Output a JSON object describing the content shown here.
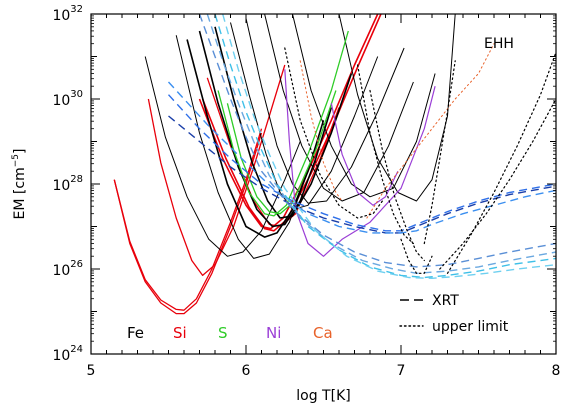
{
  "chart_data": {
    "type": "line",
    "xlabel": "log T[K]",
    "ylabel": "EM [cm⁻⁵]",
    "ylabel_base": "EM [cm",
    "ylabel_exp": "−5",
    "ylabel_close": "]",
    "xlim": [
      5,
      8
    ],
    "ylim_log10": [
      24,
      32
    ],
    "y_scale": "log",
    "grid": false,
    "x_ticks": [
      {
        "value": 5,
        "label": "5"
      },
      {
        "value": 6,
        "label": "6"
      },
      {
        "value": 7,
        "label": "7"
      },
      {
        "value": 8,
        "label": "8"
      }
    ],
    "y_ticks": [
      {
        "value": 24,
        "base": "10",
        "exp": "24"
      },
      {
        "value": 26,
        "base": "10",
        "exp": "26"
      },
      {
        "value": 28,
        "base": "10",
        "exp": "28"
      },
      {
        "value": 30,
        "base": "10",
        "exp": "30"
      },
      {
        "value": 32,
        "base": "10",
        "exp": "32"
      }
    ],
    "annotation": "EHH",
    "element_labels": [
      {
        "text": "Fe",
        "color": "#000000"
      },
      {
        "text": "Si",
        "color": "#e8000b"
      },
      {
        "text": "S",
        "color": "#2ecc27"
      },
      {
        "text": "Ni",
        "color": "#9b3fd6"
      },
      {
        "text": "Ca",
        "color": "#e8622a"
      }
    ],
    "legend": [
      {
        "label": "XRT",
        "style": "dashed"
      },
      {
        "label": "upper limit",
        "style": "dotted"
      }
    ],
    "curves": [
      {
        "group": "Si",
        "color": "#e8000b",
        "style": "solid",
        "width": 1.3,
        "x": [
          5.15,
          5.25,
          5.35,
          5.45,
          5.55,
          5.6,
          5.68,
          5.78,
          5.9,
          6.0,
          6.1
        ],
        "y": [
          28.1,
          26.6,
          25.7,
          25.2,
          24.95,
          24.95,
          25.2,
          25.9,
          27.0,
          28.0,
          29.2
        ]
      },
      {
        "group": "Si",
        "color": "#e8000b",
        "style": "solid",
        "width": 1.3,
        "x": [
          5.15,
          5.25,
          5.35,
          5.45,
          5.55,
          5.6,
          5.68,
          5.78,
          5.9,
          6.0,
          6.1
        ],
        "y": [
          28.1,
          26.65,
          25.75,
          25.27,
          25.05,
          25.03,
          25.3,
          26.0,
          27.1,
          28.1,
          29.3
        ]
      },
      {
        "group": "Si",
        "color": "#e8000b",
        "style": "solid",
        "width": 1.3,
        "x": [
          5.37,
          5.45,
          5.55,
          5.65,
          5.72,
          5.8,
          5.92,
          6.05,
          6.15,
          6.25
        ],
        "y": [
          30.0,
          28.5,
          27.2,
          26.2,
          25.85,
          26.1,
          27.0,
          28.4,
          29.6,
          30.8
        ]
      },
      {
        "group": "Si",
        "color": "#e8000b",
        "style": "solid",
        "width": 1.6,
        "x": [
          5.7,
          5.85,
          6.0,
          6.1,
          6.16,
          6.24,
          6.4,
          6.55,
          6.7,
          6.85
        ],
        "y": [
          30.0,
          28.6,
          27.5,
          27.0,
          26.95,
          27.2,
          28.3,
          29.5,
          30.8,
          32.0
        ]
      },
      {
        "group": "Si",
        "color": "#e8000b",
        "style": "solid",
        "width": 1.6,
        "x": [
          5.72,
          5.87,
          6.02,
          6.12,
          6.18,
          6.26,
          6.42,
          6.57,
          6.72,
          6.87
        ],
        "y": [
          30.0,
          28.6,
          27.45,
          26.95,
          26.9,
          27.15,
          28.25,
          29.45,
          30.75,
          32.0
        ]
      },
      {
        "group": "Si",
        "color": "#e8000b",
        "style": "solid",
        "width": 1.3,
        "x": [
          5.75,
          5.9,
          6.05,
          6.15,
          6.22,
          6.32,
          6.48,
          6.6
        ],
        "y": [
          30.5,
          28.9,
          27.6,
          27.05,
          27.0,
          27.3,
          28.6,
          29.8
        ]
      },
      {
        "group": "Fe",
        "color": "#000000",
        "style": "solid",
        "width": 1.0,
        "x": [
          5.35,
          5.48,
          5.62,
          5.76,
          5.88,
          5.98,
          6.1,
          6.25,
          6.35
        ],
        "y": [
          31.0,
          29.1,
          27.7,
          26.7,
          26.3,
          26.4,
          26.9,
          28.1,
          29.0
        ]
      },
      {
        "group": "Fe",
        "color": "#000000",
        "style": "solid",
        "width": 1.0,
        "x": [
          5.55,
          5.7,
          5.82,
          5.95,
          6.05,
          6.15,
          6.28,
          6.4
        ],
        "y": [
          31.5,
          29.2,
          27.8,
          26.7,
          26.25,
          26.35,
          27.1,
          28.3
        ]
      },
      {
        "group": "Fe",
        "color": "#000000",
        "style": "solid",
        "width": 1.6,
        "x": [
          5.62,
          5.75,
          5.88,
          6.0,
          6.12,
          6.2,
          6.3,
          6.4,
          6.5
        ],
        "y": [
          31.4,
          29.6,
          28.0,
          27.0,
          26.75,
          26.85,
          27.4,
          28.3,
          29.5
        ]
      },
      {
        "group": "Fe",
        "color": "#000000",
        "style": "solid",
        "width": 1.6,
        "x": [
          5.7,
          5.82,
          5.95,
          6.07,
          6.17,
          6.25,
          6.35,
          6.45,
          6.55
        ],
        "y": [
          31.6,
          29.9,
          28.4,
          27.4,
          27.0,
          27.05,
          27.6,
          28.6,
          29.8
        ]
      },
      {
        "group": "Fe",
        "color": "#000000",
        "style": "solid",
        "width": 1.6,
        "x": [
          5.8,
          5.92,
          6.04,
          6.14,
          6.22,
          6.3,
          6.42,
          6.55,
          6.68
        ],
        "y": [
          31.7,
          30.0,
          28.5,
          27.6,
          27.2,
          27.25,
          28.0,
          29.2,
          30.6
        ]
      },
      {
        "group": "Fe",
        "color": "#000000",
        "style": "solid",
        "width": 1.0,
        "x": [
          5.9,
          6.02,
          6.13,
          6.22,
          6.3,
          6.4,
          6.55,
          6.7,
          6.85
        ],
        "y": [
          31.8,
          30.1,
          28.7,
          27.8,
          27.4,
          27.5,
          28.3,
          29.6,
          31.0
        ]
      },
      {
        "group": "Fe",
        "color": "#000000",
        "style": "solid",
        "width": 1.0,
        "x": [
          6.0,
          6.1,
          6.2,
          6.3,
          6.4,
          6.52,
          6.68,
          6.85,
          7.02
        ],
        "y": [
          31.9,
          30.3,
          28.9,
          28.0,
          27.55,
          27.6,
          28.4,
          29.7,
          31.2
        ]
      },
      {
        "group": "Fe",
        "color": "#000000",
        "style": "solid",
        "width": 1.0,
        "x": [
          6.12,
          6.24,
          6.36,
          6.5,
          6.62,
          6.76,
          6.92,
          7.08
        ],
        "y": [
          32.0,
          30.2,
          28.9,
          27.9,
          27.6,
          27.8,
          28.9,
          30.4
        ]
      },
      {
        "group": "Fe",
        "color": "#000000",
        "style": "solid",
        "width": 1.0,
        "x": [
          6.3,
          6.42,
          6.55,
          6.68,
          6.8,
          6.95,
          7.1,
          7.22
        ],
        "y": [
          32.0,
          30.2,
          28.9,
          28.0,
          27.7,
          27.9,
          29.0,
          30.6
        ]
      },
      {
        "group": "Fe",
        "color": "#000000",
        "style": "solid",
        "width": 1.0,
        "x": [
          6.6,
          6.72,
          6.85,
          6.98,
          7.1,
          7.2,
          7.3,
          7.35
        ],
        "y": [
          32.0,
          30.1,
          28.6,
          27.8,
          27.6,
          28.1,
          29.6,
          32.0
        ]
      },
      {
        "group": "S",
        "color": "#2ecc27",
        "style": "solid",
        "width": 1.3,
        "x": [
          5.82,
          5.92,
          6.02,
          6.12,
          6.18,
          6.26,
          6.4,
          6.55,
          6.66
        ],
        "y": [
          30.2,
          28.8,
          27.8,
          27.3,
          27.25,
          27.5,
          28.7,
          30.2,
          31.6
        ]
      },
      {
        "group": "S",
        "color": "#2ecc27",
        "style": "solid",
        "width": 1.3,
        "x": [
          5.88,
          5.97,
          6.07,
          6.15,
          6.22,
          6.3,
          6.45,
          6.58
        ],
        "y": [
          29.9,
          28.6,
          27.7,
          27.35,
          27.3,
          27.55,
          28.8,
          30.2
        ]
      },
      {
        "group": "Ni",
        "color": "#9b3fd6",
        "style": "solid",
        "width": 1.2,
        "x": [
          6.25,
          6.28,
          6.32,
          6.4,
          6.5,
          6.62,
          6.8,
          7.0,
          7.15,
          7.22
        ],
        "y": [
          30.7,
          29.0,
          27.4,
          26.6,
          26.3,
          26.7,
          27.1,
          27.9,
          29.3,
          30.3
        ]
      },
      {
        "group": "Ni",
        "color": "#9b3fd6",
        "style": "solid",
        "width": 1.2,
        "x": [
          6.55,
          6.62,
          6.72,
          6.82,
          6.9,
          6.98
        ],
        "y": [
          29.9,
          28.7,
          27.8,
          27.5,
          27.7,
          28.3
        ]
      },
      {
        "group": "Ca",
        "color": "#e8622a",
        "style": "dotted",
        "width": 1.0,
        "x": [
          6.35,
          6.42,
          6.5,
          6.58,
          6.62
        ],
        "y": [
          30.9,
          29.6,
          28.5,
          27.8,
          27.6
        ]
      },
      {
        "group": "Ca",
        "color": "#e8622a",
        "style": "dotted",
        "width": 1.0,
        "x": [
          6.78,
          6.9,
          7.05,
          7.2,
          7.35,
          7.5,
          7.6
        ],
        "y": [
          27.2,
          27.9,
          28.6,
          29.3,
          30.0,
          30.6,
          31.3
        ]
      },
      {
        "group": "XRT",
        "color": "#1a3ea8",
        "style": "dashed",
        "width": 1.4,
        "x": [
          5.5,
          5.7,
          5.9,
          6.1,
          6.3,
          6.5,
          6.7,
          6.9,
          7.0,
          7.1,
          7.3,
          7.5,
          7.7,
          8.0
        ],
        "y": [
          29.6,
          29.0,
          28.4,
          27.9,
          27.5,
          27.2,
          27.0,
          26.85,
          26.85,
          27.0,
          27.3,
          27.55,
          27.75,
          27.95
        ]
      },
      {
        "group": "XRT",
        "color": "#2e6fe8",
        "style": "dashed",
        "width": 1.4,
        "x": [
          5.5,
          5.7,
          5.9,
          6.1,
          6.3,
          6.5,
          6.7,
          6.9,
          7.0,
          7.1,
          7.3,
          7.5,
          7.7,
          8.0
        ],
        "y": [
          30.1,
          29.3,
          28.6,
          28.0,
          27.6,
          27.3,
          27.05,
          26.9,
          26.9,
          27.05,
          27.35,
          27.6,
          27.8,
          28.0
        ]
      },
      {
        "group": "XRT",
        "color": "#3b8ff0",
        "style": "dashed",
        "width": 1.4,
        "x": [
          5.5,
          5.75,
          6.0,
          6.2,
          6.4,
          6.6,
          6.8,
          7.0,
          7.1,
          7.2,
          7.4,
          7.6,
          7.8,
          8.0
        ],
        "y": [
          30.4,
          29.4,
          28.5,
          27.8,
          27.3,
          27.0,
          26.85,
          26.85,
          26.9,
          27.05,
          27.3,
          27.5,
          27.7,
          27.85
        ]
      },
      {
        "group": "XRT",
        "color": "#5a8fd6",
        "style": "dashed",
        "width": 1.4,
        "x": [
          5.7,
          5.8,
          5.9,
          6.0,
          6.1,
          6.3,
          6.5,
          6.7,
          6.9,
          7.1,
          7.3,
          7.5,
          7.7,
          8.0
        ],
        "y": [
          32.0,
          31.0,
          30.0,
          29.1,
          28.3,
          27.4,
          26.8,
          26.4,
          26.15,
          26.05,
          26.1,
          26.25,
          26.4,
          26.6
        ]
      },
      {
        "group": "XRT",
        "color": "#6aa8e0",
        "style": "dashed",
        "width": 1.4,
        "x": [
          5.75,
          5.85,
          5.95,
          6.05,
          6.15,
          6.35,
          6.55,
          6.75,
          6.95,
          7.1,
          7.3,
          7.5,
          7.7,
          8.0
        ],
        "y": [
          32.0,
          30.9,
          29.9,
          29.0,
          28.2,
          27.2,
          26.6,
          26.2,
          26.0,
          25.9,
          25.95,
          26.05,
          26.2,
          26.4
        ]
      },
      {
        "group": "XRT",
        "color": "#3fc0e8",
        "style": "dashed",
        "width": 1.4,
        "x": [
          5.8,
          5.9,
          6.0,
          6.1,
          6.2,
          6.4,
          6.6,
          6.8,
          7.0,
          7.15,
          7.3,
          7.5,
          7.7,
          8.0
        ],
        "y": [
          32.0,
          30.8,
          29.7,
          28.8,
          28.0,
          27.0,
          26.45,
          26.05,
          25.85,
          25.8,
          25.85,
          25.95,
          26.1,
          26.25
        ]
      },
      {
        "group": "XRT",
        "color": "#6fd0f0",
        "style": "dashed",
        "width": 1.4,
        "x": [
          5.85,
          5.95,
          6.05,
          6.15,
          6.25,
          6.45,
          6.65,
          6.85,
          7.05,
          7.2,
          7.35,
          7.55,
          7.75,
          8.0
        ],
        "y": [
          32.0,
          30.7,
          29.6,
          28.7,
          27.9,
          26.9,
          26.3,
          25.95,
          25.8,
          25.78,
          25.82,
          25.9,
          26.0,
          26.1
        ]
      },
      {
        "group": "upper",
        "color": "#000000",
        "style": "dotted",
        "width": 1.2,
        "x": [
          6.72,
          6.8,
          6.88,
          6.95,
          7.02,
          7.08
        ],
        "y": [
          30.8,
          29.2,
          28.1,
          27.3,
          26.8,
          26.6
        ]
      },
      {
        "group": "upper",
        "color": "#000000",
        "style": "dotted",
        "width": 1.2,
        "x": [
          6.8,
          6.88,
          6.96,
          7.04,
          7.1,
          7.15
        ],
        "y": [
          30.2,
          28.8,
          27.7,
          26.9,
          26.4,
          26.2
        ]
      },
      {
        "group": "upper",
        "color": "#000000",
        "style": "dotted",
        "width": 1.2,
        "x": [
          6.25,
          6.35,
          6.48,
          6.6,
          6.72,
          6.82,
          6.88
        ],
        "y": [
          31.2,
          29.5,
          28.2,
          27.5,
          27.2,
          27.3,
          27.6
        ]
      },
      {
        "group": "upper",
        "color": "#000000",
        "style": "dotted",
        "width": 1.2,
        "x": [
          7.0,
          7.05,
          7.1,
          7.15,
          7.2
        ],
        "y": [
          26.7,
          26.2,
          25.9,
          25.9,
          26.3
        ]
      },
      {
        "group": "upper",
        "color": "#000000",
        "style": "dotted",
        "width": 1.2,
        "x": [
          7.15,
          7.2,
          7.25,
          7.3,
          7.35
        ],
        "y": [
          26.6,
          27.5,
          28.6,
          29.7,
          30.9
        ]
      },
      {
        "group": "upper",
        "color": "#000000",
        "style": "dotted",
        "width": 1.2,
        "x": [
          7.25,
          7.4,
          7.55,
          7.7,
          7.85,
          8.0
        ],
        "y": [
          26.0,
          26.6,
          27.3,
          28.1,
          29.0,
          30.0
        ]
      },
      {
        "group": "upper",
        "color": "#000000",
        "style": "dotted",
        "width": 1.2,
        "x": [
          7.3,
          7.45,
          7.6,
          7.75,
          7.9,
          8.0
        ],
        "y": [
          25.9,
          26.8,
          27.8,
          28.9,
          30.1,
          31.1
        ]
      }
    ]
  }
}
